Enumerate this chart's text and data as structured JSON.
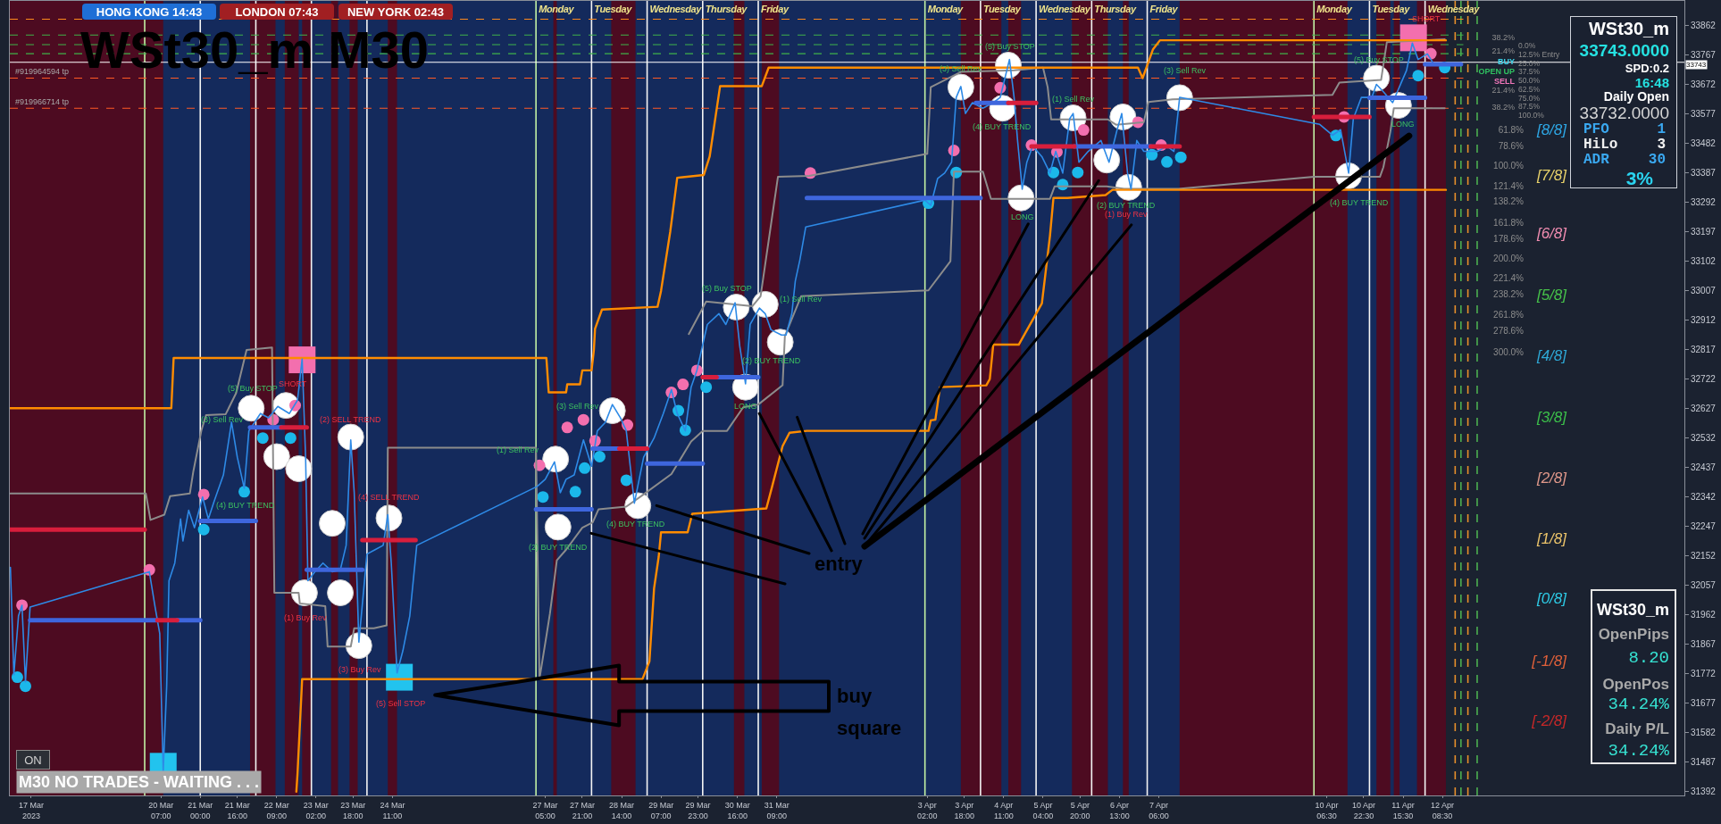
{
  "chart_data": {
    "type": "line",
    "title": "WSt30_m M30",
    "xlim": [
      "2023-03-17T13:45",
      "2023-04-16T17:00"
    ],
    "xticks": [
      {
        "value": "2023-03-17T23:00",
        "label": "17 Mar 2023"
      },
      {
        "value": "2023-03-20T07:00",
        "label": "20 Mar 07:00"
      },
      {
        "value": "2023-03-21T00:00",
        "label": "21 Mar 00:00"
      },
      {
        "value": "2023-03-21T16:00",
        "label": "21 Mar 16:00"
      },
      {
        "value": "2023-03-22T09:00",
        "label": "22 Mar 09:00"
      },
      {
        "value": "2023-03-23T02:00",
        "label": "23 Mar 02:00"
      },
      {
        "value": "2023-03-23T18:00",
        "label": "23 Mar 18:00"
      },
      {
        "value": "2023-03-24T11:00",
        "label": "24 Mar 11:00"
      },
      {
        "value": "2023-03-27T05:00",
        "label": "27 Mar 05:00"
      },
      {
        "value": "2023-03-27T21:00",
        "label": "27 Mar 21:00"
      },
      {
        "value": "2023-03-28T14:00",
        "label": "28 Mar 14:00"
      },
      {
        "value": "2023-03-29T07:00",
        "label": "29 Mar 07:00"
      },
      {
        "value": "2023-03-29T23:00",
        "label": "29 Mar 23:00"
      },
      {
        "value": "2023-03-30T16:00",
        "label": "30 Mar 16:00"
      },
      {
        "value": "2023-03-31T09:00",
        "label": "31 Mar 09:00"
      },
      {
        "value": "2023-04-03T02:00",
        "label": "3 Apr 02:00"
      },
      {
        "value": "2023-04-03T18:00",
        "label": "3 Apr 18:00"
      },
      {
        "value": "2023-04-04T11:00",
        "label": "4 Apr 11:00"
      },
      {
        "value": "2023-04-05T04:00",
        "label": "5 Apr 04:00"
      },
      {
        "value": "2023-04-05T20:00",
        "label": "5 Apr 20:00"
      },
      {
        "value": "2023-04-06T13:00",
        "label": "6 Apr 13:00"
      },
      {
        "value": "2023-04-07T06:00",
        "label": "7 Apr 06:00"
      },
      {
        "value": "2023-04-10T06:30",
        "label": "10 Apr 06:30"
      },
      {
        "value": "2023-04-10T22:30",
        "label": "10 Apr 22:30"
      },
      {
        "value": "2023-04-11T15:30",
        "label": "11 Apr 15:30"
      },
      {
        "value": "2023-04-12T08:30",
        "label": "12 Apr 08:30"
      }
    ],
    "ylim": [
      31380,
      33941
    ],
    "yticks": [
      31392,
      31487,
      31582,
      31677,
      31772,
      31867,
      31962,
      32057,
      32152,
      32247,
      32342,
      32437,
      32532,
      32627,
      32722,
      32817,
      32912,
      33007,
      33102,
      33197,
      33292,
      33387,
      33482,
      33577,
      33672,
      33767,
      33862
    ],
    "series": [
      {
        "color": "#8c8c8c",
        "x": [
          "2023-03-17T14:00",
          "2023-03-20T00:30",
          "2023-03-20T02:30",
          "2023-03-20T08:30",
          "2023-03-20T11:00",
          "2023-03-20T19:30",
          "2023-03-20T21:00",
          "2023-03-21T00:30",
          "2023-03-21T02:30",
          "2023-03-21T11:00",
          "2023-03-21T15:30",
          "2023-03-21T20:00",
          "2023-03-22T07:00",
          "2023-03-22T08:00",
          "2023-03-22T18:30",
          "2023-03-22T19:00",
          "2023-03-23T06:00",
          "2023-03-23T07:00",
          "2023-03-23T17:00",
          "2023-03-23T18:30",
          "2023-03-24T03:00",
          "2023-03-24T08:30",
          "2023-03-24T09:00",
          "2023-03-27T01:00",
          "2023-03-27T02:30",
          "2023-03-27T05:30",
          "2023-03-27T07:00",
          "2023-03-27T08:30",
          "2023-03-27T10:00",
          "2023-03-27T14:00",
          "2023-03-27T21:00",
          "2023-03-28T01:30",
          "2023-03-28T04:00",
          "2023-03-28T16:00",
          "2023-03-28T22:30",
          "2023-03-29T11:30",
          "2023-03-29T20:00",
          "2023-03-30T01:00",
          "2023-03-30T11:30",
          "2023-03-30T18:30",
          "2023-03-31T01:00",
          "2023-03-31T11:30",
          "2023-03-31T12:30",
          "2023-03-31T19:30",
          "2023-04-03T02:30",
          "2023-04-03T12:00",
          "2023-04-03T13:30",
          "2023-04-04T02:00",
          "2023-04-04T05:30",
          "2023-04-05T07:00",
          "2023-04-05T09:00",
          "2023-04-06T07:30",
          "2023-04-06T15:00",
          "2023-04-07T14:30",
          "2023-04-10T01:00",
          "2023-04-11T05:30",
          "2023-04-11T07:00",
          "2023-04-11T10:00",
          "2023-04-11T11:30",
          "2023-04-12T09:30"
        ],
        "values": [
          32353,
          32353,
          32268,
          32285,
          32345,
          32353,
          32424,
          32557,
          32606,
          32609,
          32677,
          32816,
          32824,
          32033,
          32033,
          31999,
          31990,
          31860,
          31860,
          31919,
          31919,
          31928,
          32501,
          32501,
          31755,
          31894,
          31965,
          32050,
          32138,
          32172,
          32243,
          32260,
          32302,
          32311,
          32345,
          32416,
          32521,
          32555,
          32555,
          32631,
          32640,
          32702,
          32861,
          32989,
          33008,
          33102,
          33391,
          33391,
          33303,
          33303,
          33343,
          33343,
          33335,
          33335,
          33374,
          33374,
          33405,
          33519,
          33595,
          33595
        ]
      },
      {
        "color": "#8c8c8c",
        "x": [
          "2023-03-29T19:00",
          "2023-03-30T02:30",
          "2023-03-30T22:30",
          "2023-03-31T02:00",
          "2023-03-31T09:30",
          "2023-03-31T23:00",
          "2023-04-03T02:00",
          "2023-04-03T03:30",
          "2023-04-03T16:30",
          "2023-04-04T15:30",
          "2023-04-05T04:00",
          "2023-04-05T06:00",
          "2023-04-05T07:30",
          "2023-04-06T08:00",
          "2023-04-06T11:30",
          "2023-04-06T23:30",
          "2023-04-07T01:30",
          "2023-04-07T12:00",
          "2023-04-10T09:00",
          "2023-04-10T12:00",
          "2023-04-11T06:00",
          "2023-04-11T08:30",
          "2023-04-12T09:30"
        ],
        "values": [
          32867,
          32972,
          32957,
          32989,
          33374,
          33377,
          33448,
          33663,
          33712,
          33717,
          33726,
          33663,
          33559,
          33559,
          33542,
          33550,
          33615,
          33624,
          33638,
          33678,
          33686,
          33808,
          33817
        ]
      },
      {
        "color": "#ff8c00",
        "x": [
          "2023-03-17T13:45",
          "2023-03-20T11:30",
          "2023-03-20T12:30",
          "2023-03-27T05:30",
          "2023-03-27T06:30",
          "2023-03-27T14:00",
          "2023-03-27T14:30",
          "2023-03-27T20:00",
          "2023-03-27T21:00",
          "2023-03-28T01:00",
          "2023-03-28T02:00",
          "2023-03-28T02:30",
          "2023-03-28T05:30",
          "2023-03-29T05:30",
          "2023-03-29T07:00",
          "2023-03-29T11:00",
          "2023-03-29T14:00",
          "2023-03-30T01:30",
          "2023-03-30T04:00",
          "2023-03-30T08:30",
          "2023-03-31T02:30",
          "2023-03-31T05:30",
          "2023-04-06T21:00",
          "2023-04-06T23:00",
          "2023-04-07T03:30",
          "2023-04-07T06:30",
          "2023-04-12T10:00"
        ],
        "values": [
          32628,
          32628,
          32790,
          32790,
          32679,
          32679,
          32705,
          32705,
          32750,
          32750,
          32815,
          32884,
          32946,
          32955,
          33006,
          33198,
          33371,
          33380,
          33439,
          33666,
          33666,
          33726,
          33726,
          33692,
          33785,
          33814,
          33814
        ]
      },
      {
        "color": "#ff8c00",
        "x": [
          "2023-03-22T17:30",
          "2023-03-22T18:00",
          "2023-03-22T20:00",
          "2023-03-28T23:00",
          "2023-03-29T02:00",
          "2023-03-29T04:00",
          "2023-03-29T06:00",
          "2023-03-29T07:00",
          "2023-03-29T18:30",
          "2023-03-29T20:30",
          "2023-03-31T04:30",
          "2023-03-31T07:00",
          "2023-03-31T11:30",
          "2023-03-31T14:30",
          "2023-03-31T22:00",
          "2023-04-03T02:30",
          "2023-04-03T03:30",
          "2023-04-03T05:30",
          "2023-04-03T07:30",
          "2023-04-04T03:30",
          "2023-04-04T05:00",
          "2023-04-04T06:30",
          "2023-04-04T17:30",
          "2023-04-05T03:30",
          "2023-04-05T07:00",
          "2023-04-05T08:30",
          "2023-04-05T14:30",
          "2023-04-06T07:00",
          "2023-04-06T10:00",
          "2023-04-12T10:00"
        ],
        "values": [
          31392,
          31449,
          31755,
          31755,
          31812,
          32047,
          32149,
          32228,
          32228,
          32288,
          32305,
          32376,
          32506,
          32549,
          32555,
          32555,
          32589,
          32591,
          32696,
          32702,
          32722,
          32833,
          32833,
          32966,
          33184,
          33306,
          33306,
          33315,
          33332,
          33332
        ]
      },
      {
        "color": "#2e8ae6",
        "x": [
          "2023-03-17T14:00",
          "2023-03-17T15:30",
          "2023-03-17T17:30",
          "2023-03-17T19:00",
          "2023-03-17T20:30",
          "2023-03-17T22:30",
          "2023-03-20T02:00",
          "2023-03-20T04:30",
          "2023-03-20T06:30",
          "2023-03-20T08:00",
          "2023-03-20T09:30",
          "2023-03-20T10:30",
          "2023-03-20T13:00",
          "2023-03-20T15:30",
          "2023-03-20T16:30",
          "2023-03-20T19:00",
          "2023-03-20T21:30",
          "2023-03-21T01:00",
          "2023-03-21T03:30",
          "2023-03-21T06:00",
          "2023-03-21T10:00",
          "2023-03-21T13:30",
          "2023-03-21T16:00",
          "2023-03-21T19:00",
          "2023-03-21T21:00",
          "2023-03-22T02:00",
          "2023-03-22T05:30",
          "2023-03-22T09:30",
          "2023-03-22T14:30",
          "2023-03-22T18:00",
          "2023-03-22T20:00",
          "2023-03-22T21:30",
          "2023-03-22T22:30",
          "2023-03-23T01:30",
          "2023-03-23T05:00",
          "2023-03-23T09:00",
          "2023-03-23T12:30",
          "2023-03-23T15:00",
          "2023-03-23T17:00",
          "2023-03-23T18:30",
          "2023-03-23T20:30",
          "2023-03-24T00:00",
          "2023-03-24T03:30",
          "2023-03-24T07:00",
          "2023-03-24T09:00",
          "2023-03-24T10:30",
          "2023-03-24T13:00",
          "2023-03-24T15:30",
          "2023-03-24T18:30",
          "2023-03-24T21:30",
          "2023-03-27T01:30",
          "2023-03-27T05:00",
          "2023-03-27T09:00",
          "2023-03-27T11:30",
          "2023-03-27T14:00",
          "2023-03-27T17:30",
          "2023-03-27T21:30",
          "2023-03-28T01:00",
          "2023-03-28T03:30",
          "2023-03-28T07:00",
          "2023-03-28T10:00",
          "2023-03-28T13:30",
          "2023-03-28T16:00",
          "2023-03-28T19:30",
          "2023-03-28T23:30",
          "2023-03-29T04:00",
          "2023-03-29T08:00",
          "2023-03-29T11:30",
          "2023-03-29T14:00",
          "2023-03-29T17:30",
          "2023-03-29T20:00",
          "2023-03-29T22:30",
          "2023-03-30T03:00",
          "2023-03-30T08:00",
          "2023-03-30T11:00",
          "2023-03-30T15:00",
          "2023-03-30T17:00",
          "2023-03-30T19:30",
          "2023-03-30T21:30",
          "2023-03-31T01:30",
          "2023-03-31T04:00",
          "2023-03-31T06:30",
          "2023-03-31T11:00",
          "2023-03-31T13:00",
          "2023-03-31T15:30",
          "2023-03-31T17:00",
          "2023-03-31T19:00",
          "2023-03-31T21:30",
          "2023-04-03T01:00",
          "2023-04-03T03:30",
          "2023-04-03T06:30",
          "2023-04-03T09:30",
          "2023-04-03T12:30",
          "2023-04-03T14:30",
          "2023-04-03T16:30",
          "2023-04-03T18:30",
          "2023-04-03T21:30",
          "2023-04-04T02:00",
          "2023-04-04T06:30",
          "2023-04-04T09:30",
          "2023-04-04T13:30",
          "2023-04-04T15:30",
          "2023-04-04T17:00",
          "2023-04-04T19:00",
          "2023-04-04T21:00",
          "2023-04-04T23:30",
          "2023-04-05T03:30",
          "2023-04-05T07:00",
          "2023-04-05T09:30",
          "2023-04-05T12:30",
          "2023-04-05T15:30",
          "2023-04-05T17:00",
          "2023-04-05T19:30",
          "2023-04-05T23:30",
          "2023-04-06T05:00",
          "2023-04-06T08:30",
          "2023-04-06T12:00",
          "2023-04-06T14:00",
          "2023-04-06T16:30",
          "2023-04-06T18:00",
          "2023-04-06T20:30",
          "2023-04-06T23:30",
          "2023-04-07T05:30",
          "2023-04-07T09:30",
          "2023-04-07T12:30",
          "2023-04-07T15:00",
          "2023-04-10T03:30",
          "2023-04-10T09:00",
          "2023-04-10T12:30",
          "2023-04-10T16:00",
          "2023-04-10T18:00",
          "2023-04-10T21:30",
          "2023-04-11T02:00",
          "2023-04-11T04:00",
          "2023-04-11T07:00",
          "2023-04-11T11:00",
          "2023-04-11T14:00",
          "2023-04-11T17:00",
          "2023-04-11T19:30",
          "2023-04-11T22:00",
          "2023-04-12T02:00",
          "2023-04-12T05:00",
          "2023-04-12T09:30"
        ],
        "values": [
          32115,
          31769,
          31959,
          31993,
          31746,
          31987,
          32101,
          31987,
          31902,
          31457,
          31732,
          32072,
          32129,
          32271,
          32200,
          32299,
          32243,
          32342,
          32271,
          32328,
          32413,
          32583,
          32470,
          32370,
          32555,
          32611,
          32597,
          32634,
          32611,
          32654,
          32787,
          32470,
          32072,
          32101,
          32129,
          32101,
          32107,
          32186,
          32526,
          32356,
          31874,
          32158,
          32172,
          32186,
          32285,
          32129,
          31775,
          31846,
          31959,
          32186,
          32376,
          32399,
          32455,
          32356,
          32399,
          32413,
          32526,
          32441,
          32555,
          32583,
          32640,
          32597,
          32555,
          32322,
          32470,
          32532,
          32611,
          32688,
          32611,
          32555,
          32696,
          32750,
          32898,
          32933,
          32898,
          32968,
          32829,
          32707,
          32898,
          32951,
          32933,
          32881,
          32864,
          32864,
          32933,
          33038,
          33107,
          33212,
          33299,
          33282,
          33369,
          33386,
          33421,
          33630,
          33665,
          33578,
          33613,
          33595,
          33613,
          33630,
          33752,
          33630,
          33491,
          33334,
          33421,
          33473,
          33439,
          33386,
          33456,
          33386,
          33561,
          33578,
          33421,
          33456,
          33491,
          33421,
          33526,
          33578,
          33386,
          33334,
          33491,
          33456,
          33456,
          33473,
          33456,
          33630,
          33543,
          33508,
          33526,
          33386,
          33561,
          33630,
          33630,
          33672,
          33648,
          33613,
          33665,
          33717,
          33805,
          33752,
          33770,
          33735,
          33743
        ]
      },
      {
        "color": "#3e66dd",
        "x": [
          "2023-03-17T22:30",
          "2023-03-20T05:30",
          null,
          "2023-03-20T14:00",
          "2023-03-21T00:00",
          null,
          "2023-03-21T00:00",
          "2023-03-22T00:00",
          null,
          "2023-03-21T21:30",
          "2023-03-22T11:00",
          null,
          "2023-03-22T22:00",
          "2023-03-23T22:00",
          null,
          "2023-03-27T01:00",
          "2023-03-28T01:00",
          null,
          "2023-03-28T01:30",
          "2023-03-28T13:00",
          null,
          "2023-03-29T01:00",
          "2023-03-30T01:00",
          null,
          "2023-03-30T07:00",
          "2023-03-31T01:00",
          null,
          "2023-03-31T22:00",
          "2023-04-04T01:00",
          null,
          "2023-04-03T23:00",
          "2023-04-04T13:00",
          null,
          "2023-04-05T17:30",
          "2023-04-07T02:30",
          null,
          "2023-04-11T01:00",
          "2023-04-12T01:00",
          null,
          "2023-04-12T01:00",
          "2023-04-12T16:30"
        ],
        "values": [
          31945,
          31945,
          null,
          31945,
          31945,
          null,
          32265,
          32265,
          null,
          32566,
          32566,
          null,
          32107,
          32107,
          null,
          32302,
          32302,
          null,
          32498,
          32498,
          null,
          32450,
          32450,
          null,
          32728,
          32728,
          null,
          33306,
          33306,
          null,
          33612,
          33612,
          null,
          33472,
          33472,
          null,
          33629,
          33629,
          null,
          33737,
          33737
        ]
      },
      {
        "color": "#d81e3c",
        "x": [
          "2023-03-17T14:00",
          "2023-03-20T00:00",
          null,
          "2023-03-20T05:30",
          "2023-03-20T14:00",
          null,
          "2023-03-22T11:00",
          "2023-03-22T22:00",
          null,
          "2023-03-23T22:00",
          "2023-03-24T21:00",
          null,
          "2023-03-28T13:00",
          "2023-03-29T01:00",
          null,
          "2023-03-30T01:00",
          "2023-03-30T07:00",
          null,
          "2023-04-04T13:00",
          "2023-04-05T01:00",
          null,
          "2023-04-04T23:00",
          "2023-04-05T17:30",
          null,
          "2023-04-07T02:30",
          "2023-04-07T15:00",
          null,
          "2023-04-10T01:00",
          "2023-04-11T01:00"
        ],
        "values": [
          32237,
          32237,
          null,
          31945,
          31945,
          null,
          32566,
          32566,
          null,
          32203,
          32203,
          null,
          32498,
          32498,
          null,
          32728,
          32728,
          null,
          33612,
          33612,
          null,
          33472,
          33472,
          null,
          33472,
          33472,
          null,
          33567,
          33567
        ]
      },
      {
        "type": "scatter",
        "marker": "circle",
        "color": "#ffffff",
        "x": [
          "2023-03-21T22:00",
          "2023-03-22T09:00",
          "2023-03-22T13:00",
          "2023-03-22T18:30",
          "2023-03-22T21:00",
          "2023-03-23T09:00",
          "2023-03-23T12:30",
          "2023-03-23T17:00",
          "2023-03-23T20:30",
          "2023-03-24T09:30",
          "2023-03-27T09:30",
          "2023-03-27T10:30",
          "2023-03-28T10:00",
          "2023-03-28T21:00",
          "2023-03-30T15:30",
          "2023-03-30T19:30",
          "2023-03-31T04:00",
          "2023-03-31T10:30",
          "2023-04-03T16:30",
          "2023-04-04T10:30",
          "2023-04-04T13:00",
          "2023-04-04T18:30",
          "2023-04-05T17:00",
          "2023-04-06T07:30",
          "2023-04-06T14:30",
          "2023-04-06T17:00",
          "2023-04-07T15:00",
          "2023-04-10T16:00",
          "2023-04-11T04:00",
          "2023-04-11T13:30"
        ],
        "values": [
          32628,
          32472,
          32637,
          32433,
          32033,
          32257,
          32033,
          32535,
          31863,
          32274,
          32464,
          32245,
          32620,
          32314,
          32954,
          32696,
          32963,
          32841,
          33663,
          33595,
          33734,
          33306,
          33564,
          33428,
          33567,
          33340,
          33629,
          33377,
          33692,
          33604
        ]
      },
      {
        "type": "scatter",
        "marker": "circle",
        "color": "#f36fae",
        "x": [
          "2023-03-17T19:00",
          "2023-03-20T02:00",
          "2023-03-21T01:30",
          "2023-03-22T07:30",
          "2023-03-22T17:00",
          "2023-03-27T02:30",
          "2023-03-27T14:30",
          "2023-03-27T21:30",
          "2023-03-28T02:30",
          "2023-03-28T16:30",
          "2023-03-29T11:30",
          "2023-03-29T16:30",
          "2023-03-29T22:30",
          "2023-03-31T23:30",
          "2023-04-03T13:30",
          "2023-04-04T09:30",
          "2023-04-04T23:00",
          "2023-04-05T10:00",
          "2023-04-05T21:30",
          "2023-04-06T21:00",
          "2023-04-07T07:00",
          "2023-04-10T14:00",
          "2023-04-12T03:30"
        ],
        "values": [
          31993,
          32107,
          32350,
          32591,
          32637,
          32444,
          32566,
          32591,
          32523,
          32574,
          32679,
          32705,
          32750,
          33386,
          33459,
          33661,
          33476,
          33454,
          33525,
          33550,
          33476,
          33567,
          33771
        ]
      },
      {
        "type": "scatter",
        "marker": "circle",
        "color": "#1bb8ea",
        "x": [
          "2023-03-17T17:00",
          "2023-03-17T20:30",
          "2023-03-21T01:30",
          "2023-03-21T19:00",
          "2023-03-22T03:00",
          "2023-03-22T15:00",
          "2023-03-27T04:00",
          "2023-03-27T18:00",
          "2023-03-27T22:00",
          "2023-03-28T04:30",
          "2023-03-28T16:00",
          "2023-03-29T14:30",
          "2023-03-29T17:30",
          "2023-03-30T02:30",
          "2023-04-03T02:30",
          "2023-04-03T14:30",
          "2023-04-05T08:30",
          "2023-04-05T12:30",
          "2023-04-05T19:00",
          "2023-04-07T03:00",
          "2023-04-07T09:30",
          "2023-04-07T15:30",
          "2023-04-10T10:30",
          "2023-04-11T22:00",
          "2023-04-12T09:30"
        ],
        "values": [
          31761,
          31732,
          32237,
          32359,
          32532,
          32532,
          32342,
          32359,
          32435,
          32472,
          32396,
          32620,
          32557,
          32696,
          33289,
          33388,
          33388,
          33349,
          33388,
          33445,
          33422,
          33437,
          33507,
          33700,
          33726
        ]
      },
      {
        "type": "scatter",
        "marker": "square",
        "color": "#f36fae",
        "x": [
          "2023-03-22T20:00",
          "2023-04-11T20:00"
        ],
        "values": [
          32784,
          33822
        ]
      },
      {
        "type": "scatter",
        "marker": "square",
        "color": "#22c3ee",
        "x": [
          "2023-03-20T08:00",
          "2023-03-24T14:00"
        ],
        "values": [
          31474,
          31761
        ]
      }
    ],
    "bands": [
      {
        "axis": "x",
        "from": "2023-03-17T13:45",
        "to": "2023-04-12T10:00",
        "color": "#142a5c"
      },
      {
        "axis": "x",
        "from": "2023-03-17T13:45",
        "to": "2023-03-20T08:00",
        "color": "#4d0b21"
      },
      {
        "axis": "x",
        "from": "2023-03-21T21:30",
        "to": "2023-03-22T08:30",
        "color": "#4d0b21"
      },
      {
        "axis": "x",
        "from": "2023-03-22T12:30",
        "to": "2023-03-22T18:30",
        "color": "#4d0b21"
      },
      {
        "axis": "x",
        "from": "2023-03-22T20:00",
        "to": "2023-03-23T00:00",
        "color": "#4d0b21"
      },
      {
        "axis": "x",
        "from": "2023-03-23T08:30",
        "to": "2023-03-23T11:30",
        "color": "#4d0b21"
      },
      {
        "axis": "x",
        "from": "2023-03-23T16:30",
        "to": "2023-03-23T20:00",
        "color": "#4d0b21"
      },
      {
        "axis": "x",
        "from": "2023-03-24T09:00",
        "to": "2023-03-24T13:00",
        "color": "#4d0b21"
      },
      {
        "axis": "x",
        "from": "2023-03-27T08:30",
        "to": "2023-03-27T10:00",
        "color": "#4d0b21"
      },
      {
        "axis": "x",
        "from": "2023-03-28T09:30",
        "to": "2023-03-28T20:00",
        "color": "#4d0b21"
      },
      {
        "axis": "x",
        "from": "2023-03-30T14:30",
        "to": "2023-03-30T19:00",
        "color": "#4d0b21"
      },
      {
        "axis": "x",
        "from": "2023-03-31T02:30",
        "to": "2023-03-31T10:00",
        "color": "#4d0b21"
      },
      {
        "axis": "x",
        "from": "2023-04-03T16:30",
        "to": "2023-04-04T10:00",
        "color": "#4d0b21"
      },
      {
        "axis": "x",
        "from": "2023-04-04T13:00",
        "to": "2023-04-04T18:30",
        "color": "#4d0b21"
      },
      {
        "axis": "x",
        "from": "2023-04-05T16:30",
        "to": "2023-04-06T08:00",
        "color": "#4d0b21"
      },
      {
        "axis": "x",
        "from": "2023-04-06T14:30",
        "to": "2023-04-06T17:00",
        "color": "#4d0b21"
      },
      {
        "axis": "x",
        "from": "2023-04-07T15:00",
        "to": "2023-04-10T15:30",
        "color": "#4d0b21"
      },
      {
        "axis": "x",
        "from": "2023-04-11T04:00",
        "to": "2023-04-11T10:00",
        "color": "#4d0b21"
      },
      {
        "axis": "x",
        "from": "2023-04-11T11:30",
        "to": "2023-04-11T14:00",
        "color": "#4d0b21"
      },
      {
        "axis": "x",
        "from": "2023-04-11T21:30",
        "to": "2023-04-12T10:00",
        "color": "#4d0b21"
      }
    ],
    "ref_lines": [
      {
        "axis": "x",
        "value": "2023-03-20T00:00",
        "color": "#c3f2a5"
      },
      {
        "axis": "x",
        "value": "2023-03-21T00:00",
        "color": "#f4f4f4"
      },
      {
        "axis": "x",
        "value": "2023-03-22T00:00",
        "color": "#f4f4f4"
      },
      {
        "axis": "x",
        "value": "2023-03-23T00:00",
        "color": "#f4f4f4"
      },
      {
        "axis": "x",
        "value": "2023-03-24T00:00",
        "color": "#f4f4f4"
      },
      {
        "axis": "x",
        "value": "2023-03-27T01:00",
        "color": "#c3f2a5"
      },
      {
        "axis": "x",
        "value": "2023-03-28T01:00",
        "color": "#f4f4f4"
      },
      {
        "axis": "x",
        "value": "2023-03-29T01:00",
        "color": "#f4f4f4"
      },
      {
        "axis": "x",
        "value": "2023-03-30T01:00",
        "color": "#f4f4f4"
      },
      {
        "axis": "x",
        "value": "2023-03-31T01:00",
        "color": "#f4f4f4"
      },
      {
        "axis": "x",
        "value": "2023-04-03T01:00",
        "color": "#c3f2a5"
      },
      {
        "axis": "x",
        "value": "2023-04-04T01:00",
        "color": "#f4f4f4"
      },
      {
        "axis": "x",
        "value": "2023-04-05T01:00",
        "color": "#f4f4f4"
      },
      {
        "axis": "x",
        "value": "2023-04-06T01:00",
        "color": "#f4f4f4"
      },
      {
        "axis": "x",
        "value": "2023-04-07T01:00",
        "color": "#f4f4f4"
      },
      {
        "axis": "x",
        "value": "2023-04-10T01:00",
        "color": "#c3f2a5"
      },
      {
        "axis": "x",
        "value": "2023-04-11T01:00",
        "color": "#f4f4f4"
      },
      {
        "axis": "x",
        "value": "2023-04-12T01:00",
        "color": "#f4f4f4"
      },
      {
        "axis": "x",
        "value": "2023-04-12T14:00",
        "color": "#e8902a",
        "line_style": "dashed"
      },
      {
        "axis": "x",
        "value": "2023-04-12T16:30",
        "color": "#4caf50",
        "line_style": "dashed"
      },
      {
        "axis": "x",
        "value": "2023-04-12T19:30",
        "color": "#e8902a",
        "line_style": "dashed"
      },
      {
        "axis": "x",
        "value": "2023-04-12T23:30",
        "color": "#4caf50",
        "line_style": "dashed"
      },
      {
        "axis": "y",
        "value": 33882,
        "color": "#ff8a1c",
        "line_style": "dashed"
      },
      {
        "axis": "y",
        "value": 33831,
        "color": "#3fb34a",
        "line_style": "dashed"
      },
      {
        "axis": "y",
        "value": 33800,
        "color": "#3fb34a",
        "line_style": "dashed"
      },
      {
        "axis": "y",
        "value": 33771,
        "color": "#3fb34a",
        "line_style": "dashed"
      },
      {
        "axis": "y",
        "value": 33743,
        "label": "33743",
        "color": "#ffffff",
        "line_style": "solid"
      },
      {
        "axis": "y",
        "value": 33692,
        "color": "#ff5a24",
        "line_style": "dashed"
      },
      {
        "axis": "y",
        "value": 33595,
        "color": "#ff5a24",
        "line_style": "dashed"
      }
    ],
    "annotations": [
      "HONG KONG 14:43",
      "LONDON 07:43",
      "NEW YORK 02:43",
      "WSt30_m",
      "33743.0000",
      "SPD:0.2",
      "16:48",
      "Daily Open",
      "33732.0000",
      "PFO",
      "1",
      "HiLo",
      "3",
      "ADR",
      "30",
      "3%",
      "WSt30_m",
      "OpenPips",
      "8.20",
      "OpenPos",
      "34.24%",
      "Daily P/L",
      "34.24%",
      "ON",
      "M30 NO TRADES - WAITING . . .",
      "Monday",
      "Tuesday",
      "Wednesday",
      "Thursday",
      "Friday",
      "Monday",
      "Tuesday",
      "Wednesday",
      "Thursday",
      "Friday",
      "Monday",
      "Tuesday",
      "Wednesday",
      "#919964594 tp",
      "#919966714 tp",
      "38.2%",
      "21.4%",
      "BUY",
      "OPEN UP",
      "SELL",
      "21.4%",
      "38.2%",
      "0.0%",
      "12.5% Entry",
      "25.0%",
      "37.5%",
      "50.0%",
      "62.5%",
      "75.0%",
      "87.5%",
      "100.0%",
      "61.8%",
      "78.6%",
      "100.0%",
      "121.4%",
      "138.2%",
      "161.8%",
      "178.6%",
      "200.0%",
      "221.4%",
      "238.2%",
      "261.8%",
      "278.6%",
      "300.0%",
      "[8/8]",
      "[7/8]",
      "[6/8]",
      "[5/8]",
      "[4/8]",
      "[3/8]",
      "[2/8]",
      "[1/8]",
      "[0/8]",
      "[-1/8]",
      "[-2/8]",
      {
        "text": "(3) Sell Rev",
        "x": "2023-03-21T22:00",
        "y": 32628
      },
      {
        "text": "(4) BUY TREND",
        "x": "2023-03-21T19:00",
        "y": 32359
      },
      {
        "text": "(5) Buy STOP",
        "x": "2023-03-21T22:00",
        "y": 32628
      },
      {
        "text": "(1) Sell Rev",
        "x": "2023-03-27T09:30",
        "y": 32464
      },
      {
        "text": "(2) BUY TREND",
        "x": "2023-03-27T10:30",
        "y": 32245
      },
      {
        "text": "(3) Sell Rev",
        "x": "2023-03-28T10:00",
        "y": 32620
      },
      {
        "text": "(4) BUY TREND",
        "x": "2023-03-28T21:00",
        "y": 32314
      },
      {
        "text": "(5) Buy STOP",
        "x": "2023-03-30T15:30",
        "y": 32954
      },
      {
        "text": "LONG",
        "x": "2023-03-30T19:30",
        "y": 32696
      },
      {
        "text": "(1) Sell Rev",
        "x": "2023-03-31T04:00",
        "y": 32963
      },
      {
        "text": "(2) BUY TREND",
        "x": "2023-03-31T10:30",
        "y": 32841
      },
      {
        "text": "(3) Sell Rev",
        "x": "2023-04-03T16:30",
        "y": 33663
      },
      {
        "text": "(4) BUY TREND",
        "x": "2023-04-04T10:30",
        "y": 33595
      },
      {
        "text": "(5) Buy STOP",
        "x": "2023-04-04T13:00",
        "y": 33734
      },
      {
        "text": "LONG",
        "x": "2023-04-04T18:30",
        "y": 33306
      },
      {
        "text": "(1) Sell Rev",
        "x": "2023-04-05T17:00",
        "y": 33564
      },
      {
        "text": "(2) BUY TREND",
        "x": "2023-04-06T17:00",
        "y": 33340
      },
      {
        "text": "(3) Sell Rev",
        "x": "2023-04-07T15:00",
        "y": 33629
      },
      {
        "text": "(4) BUY TREND",
        "x": "2023-04-10T16:00",
        "y": 33377
      },
      {
        "text": "(5) Buy STOP",
        "x": "2023-04-11T04:00",
        "y": 33692
      },
      {
        "text": "LONG",
        "x": "2023-04-11T13:30",
        "y": 33604
      },
      {
        "text": "SHORT",
        "x": "2023-03-22T13:00",
        "y": 32637
      },
      {
        "text": "(1) Buy Rev",
        "x": "2023-03-22T21:00",
        "y": 32033
      },
      {
        "text": "(2) SELL TREND",
        "x": "2023-03-23T17:00",
        "y": 32535
      },
      {
        "text": "(3) Buy Rev",
        "x": "2023-03-23T20:30",
        "y": 31863
      },
      {
        "text": "(4) SELL TREND",
        "x": "2023-03-24T09:30",
        "y": 32274
      },
      {
        "text": "(5) Sell STOP",
        "x": "2023-03-24T14:00",
        "y": 31761
      },
      {
        "text": "(1) Buy Rev",
        "x": "2023-04-06T17:00",
        "y": 33340
      },
      {
        "text": "SHORT",
        "x": "2023-04-11T20:00",
        "y": 33822
      },
      {
        "text": "entry",
        "x": "2023-03-30T19:30",
        "y": 32696
      },
      "buy square"
    ]
  }
}
